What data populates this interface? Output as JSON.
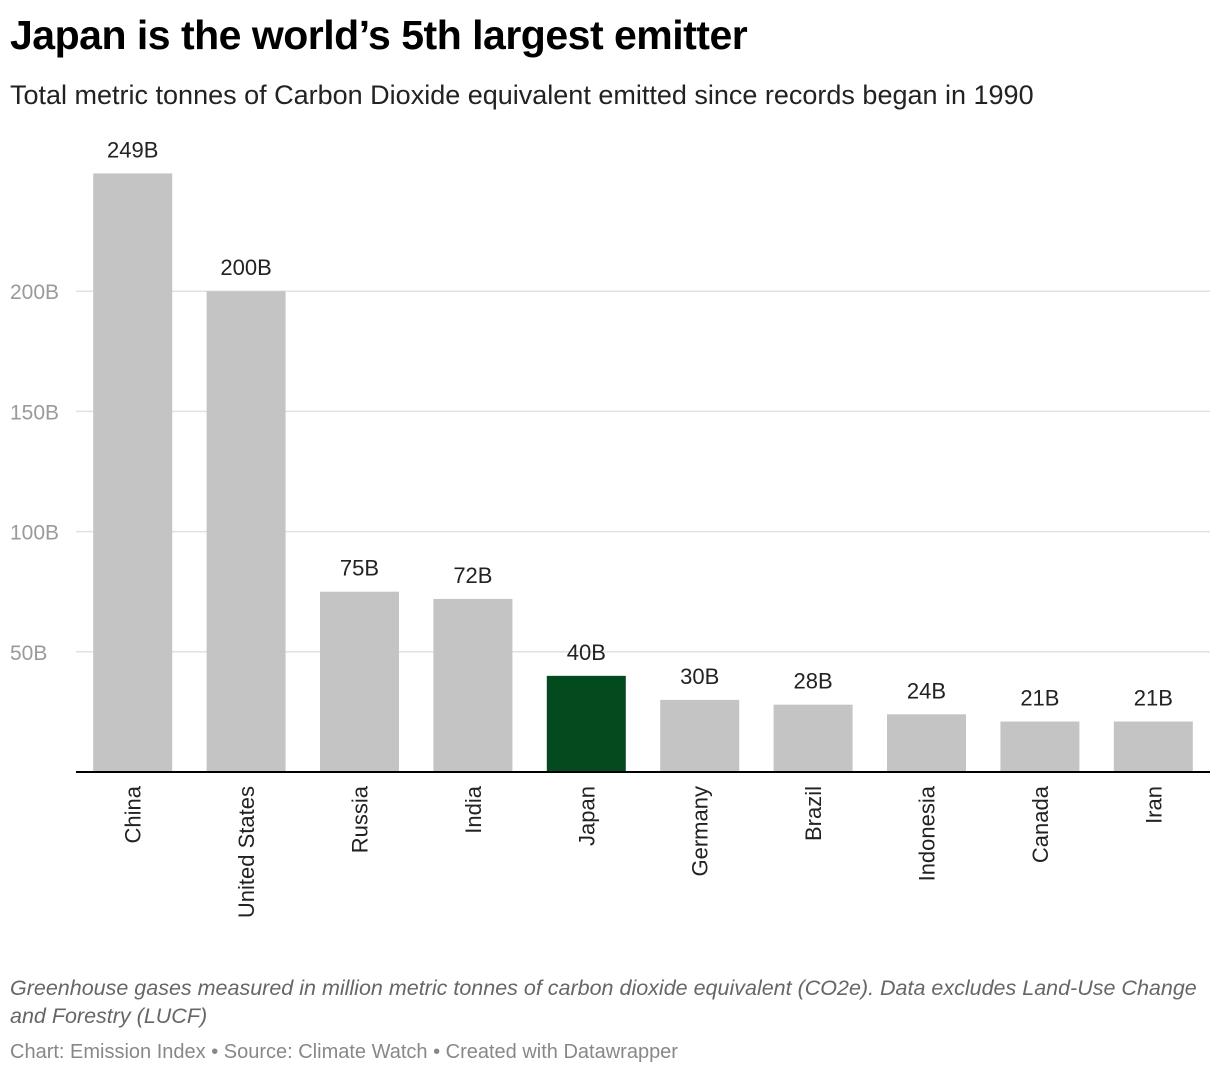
{
  "header": {
    "title": "Japan is the world’s 5th largest emitter",
    "subtitle": "Total metric tonnes of Carbon Dioxide equivalent emitted since records began in 1990"
  },
  "chart_data": {
    "type": "bar",
    "categories": [
      "China",
      "United States",
      "Russia",
      "India",
      "Japan",
      "Germany",
      "Brazil",
      "Indonesia",
      "Canada",
      "Iran"
    ],
    "values": [
      249,
      200,
      75,
      72,
      40,
      30,
      28,
      24,
      21,
      21
    ],
    "value_labels": [
      "249B",
      "200B",
      "75B",
      "72B",
      "40B",
      "30B",
      "28B",
      "24B",
      "21B",
      "21B"
    ],
    "highlight_category": "Japan",
    "y_ticks": [
      50,
      100,
      150,
      200
    ],
    "y_tick_labels": [
      "50B",
      "100B",
      "150B",
      "200B"
    ],
    "ylim": [
      0,
      249
    ],
    "grid": true,
    "colors": {
      "bar": "#c4c4c4",
      "highlight": "#034a1e",
      "grid": "#e1e1e1",
      "axis": "#000000"
    }
  },
  "notes": "Greenhouse gases measured in million metric tonnes of carbon dioxide equivalent (CO2e). Data excludes Land-Use Change and Forestry (LUCF)",
  "footer": "Chart: Emission Index • Source: Climate Watch • Created with Datawrapper"
}
